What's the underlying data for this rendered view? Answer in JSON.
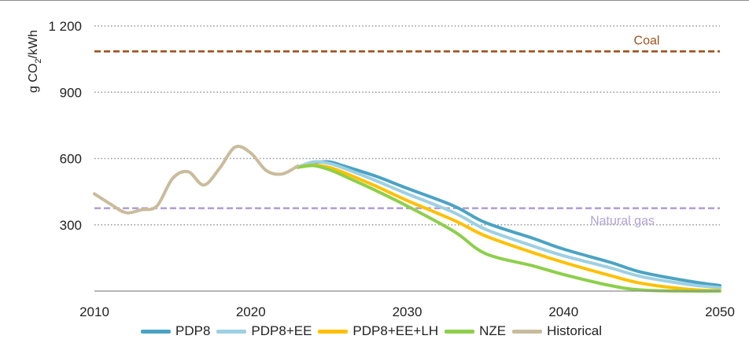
{
  "chart_data": {
    "type": "line",
    "title": "",
    "xlabel": "",
    "ylabel": "g CO2/kWh",
    "ylabel_parts": {
      "before": "g CO",
      "sub": "2",
      "after": "/kWh"
    },
    "xlim": [
      2010,
      2050
    ],
    "ylim": [
      0,
      1200
    ],
    "x_ticks": [
      {
        "value": 2010,
        "label": "2010"
      },
      {
        "value": 2020,
        "label": "2020"
      },
      {
        "value": 2030,
        "label": "2030"
      },
      {
        "value": 2040,
        "label": "2040"
      },
      {
        "value": 2050,
        "label": "2050"
      }
    ],
    "y_ticks": [
      {
        "value": 300,
        "label": "300"
      },
      {
        "value": 600,
        "label": "600"
      },
      {
        "value": 900,
        "label": "900"
      },
      {
        "value": 1200,
        "label": "1 200"
      }
    ],
    "grid": "horizontal dotted",
    "legend_position": "bottom",
    "reference_lines": [
      {
        "name": "Coal",
        "value": 1085,
        "color": "#A0521D"
      },
      {
        "name": "Natural gas",
        "value": 375,
        "color": "#B3A2D4"
      }
    ],
    "series": [
      {
        "name": "Historical",
        "color": "#C9BC9C",
        "points": [
          [
            2010,
            440
          ],
          [
            2011,
            395
          ],
          [
            2012,
            355
          ],
          [
            2013,
            368
          ],
          [
            2014,
            385
          ],
          [
            2015,
            510
          ],
          [
            2016,
            540
          ],
          [
            2017,
            480
          ],
          [
            2018,
            555
          ],
          [
            2019,
            652
          ],
          [
            2020,
            625
          ],
          [
            2021,
            545
          ],
          [
            2022,
            530
          ],
          [
            2023,
            566
          ]
        ]
      },
      {
        "name": "PDP8",
        "color": "#4BA3C3",
        "points": [
          [
            2023,
            560
          ],
          [
            2024,
            580
          ],
          [
            2025,
            585
          ],
          [
            2026,
            565
          ],
          [
            2028,
            520
          ],
          [
            2030,
            465
          ],
          [
            2033,
            385
          ],
          [
            2035,
            310
          ],
          [
            2038,
            240
          ],
          [
            2040,
            190
          ],
          [
            2043,
            130
          ],
          [
            2045,
            85
          ],
          [
            2048,
            45
          ],
          [
            2050,
            25
          ]
        ]
      },
      {
        "name": "PDP8+EE",
        "color": "#9ED0E3",
        "points": [
          [
            2023,
            560
          ],
          [
            2024,
            585
          ],
          [
            2025,
            578
          ],
          [
            2026,
            555
          ],
          [
            2028,
            500
          ],
          [
            2030,
            440
          ],
          [
            2033,
            355
          ],
          [
            2035,
            280
          ],
          [
            2038,
            205
          ],
          [
            2040,
            160
          ],
          [
            2043,
            105
          ],
          [
            2045,
            65
          ],
          [
            2048,
            30
          ],
          [
            2050,
            15
          ]
        ]
      },
      {
        "name": "PDP8+EE+LH",
        "color": "#FFC000",
        "points": [
          [
            2023,
            560
          ],
          [
            2024,
            570
          ],
          [
            2025,
            560
          ],
          [
            2026,
            535
          ],
          [
            2028,
            475
          ],
          [
            2030,
            410
          ],
          [
            2033,
            320
          ],
          [
            2035,
            250
          ],
          [
            2038,
            175
          ],
          [
            2040,
            130
          ],
          [
            2043,
            70
          ],
          [
            2045,
            35
          ],
          [
            2048,
            8
          ],
          [
            2050,
            2
          ]
        ]
      },
      {
        "name": "NZE",
        "color": "#8DCF4A",
        "points": [
          [
            2023,
            560
          ],
          [
            2024,
            568
          ],
          [
            2025,
            550
          ],
          [
            2026,
            520
          ],
          [
            2028,
            455
          ],
          [
            2030,
            385
          ],
          [
            2033,
            270
          ],
          [
            2035,
            170
          ],
          [
            2038,
            115
          ],
          [
            2040,
            75
          ],
          [
            2043,
            25
          ],
          [
            2045,
            5
          ],
          [
            2048,
            0
          ],
          [
            2050,
            0
          ]
        ]
      }
    ],
    "legend": [
      {
        "name": "PDP8",
        "color": "#4BA3C3"
      },
      {
        "name": "PDP8+EE",
        "color": "#9ED0E3"
      },
      {
        "name": "PDP8+EE+LH",
        "color": "#FFC000"
      },
      {
        "name": "NZE",
        "color": "#8DCF4A"
      },
      {
        "name": "Historical",
        "color": "#C9BC9C"
      }
    ]
  }
}
